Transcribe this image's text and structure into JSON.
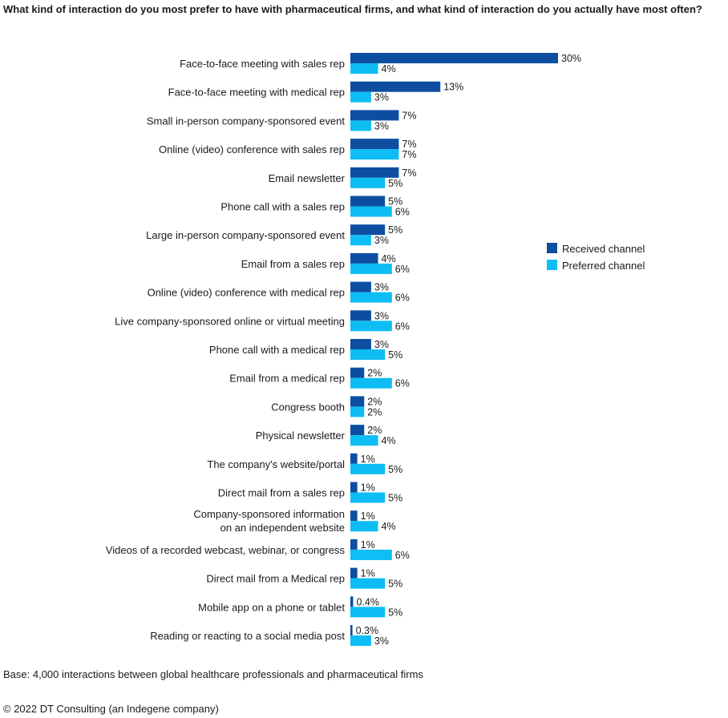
{
  "chart_data": {
    "type": "bar",
    "orientation": "horizontal",
    "title": "What kind of interaction do you most prefer to have with pharmaceutical firms, and what kind of interaction do you actually have most often?",
    "categories": [
      "Face-to-face meeting with sales rep",
      "Face-to-face meeting with medical rep",
      "Small in-person company-sponsored event",
      "Online (video) conference with sales rep",
      "Email newsletter",
      "Phone call with a sales rep",
      "Large in-person company-sponsored event",
      "Email from a sales rep",
      "Online (video) conference with medical rep",
      "Live company-sponsored online or virtual meeting",
      "Phone call with a medical rep",
      "Email from a medical rep",
      "Congress booth",
      "Physical newsletter",
      "The company's website/portal",
      "Direct mail from a sales rep",
      "Company-sponsored information\non an independent website",
      "Videos of a recorded webcast, webinar, or congress",
      "Direct mail from a Medical rep",
      "Mobile app on a phone or tablet",
      "Reading or reacting to a social media post"
    ],
    "series": [
      {
        "name": "Received channel",
        "color": "#0d4ea1",
        "values": [
          30,
          13,
          7,
          7,
          7,
          5,
          5,
          4,
          3,
          3,
          3,
          2,
          2,
          2,
          1,
          1,
          1,
          1,
          1,
          0.4,
          0.3
        ],
        "labels": [
          "30%",
          "13%",
          "7%",
          "7%",
          "7%",
          "5%",
          "5%",
          "4%",
          "3%",
          "3%",
          "3%",
          "2%",
          "2%",
          "2%",
          "1%",
          "1%",
          "1%",
          "1%",
          "1%",
          "0.4%",
          "0.3%"
        ]
      },
      {
        "name": "Preferred channel",
        "color": "#0dbdf3",
        "values": [
          4,
          3,
          3,
          7,
          5,
          6,
          3,
          6,
          6,
          6,
          5,
          6,
          2,
          4,
          5,
          5,
          4,
          6,
          5,
          5,
          3
        ],
        "labels": [
          "4%",
          "3%",
          "3%",
          "7%",
          "5%",
          "6%",
          "3%",
          "6%",
          "6%",
          "6%",
          "5%",
          "6%",
          "2%",
          "4%",
          "5%",
          "5%",
          "4%",
          "6%",
          "5%",
          "5%",
          "3%"
        ]
      }
    ],
    "xlim": [
      0,
      30
    ],
    "xlabel": "",
    "ylabel": "",
    "legend_position": "right"
  },
  "footer": {
    "base": "Base: 4,000 interactions between global healthcare professionals and pharmaceutical firms",
    "copyright": "© 2022 DT Consulting (an Indegene company)"
  }
}
